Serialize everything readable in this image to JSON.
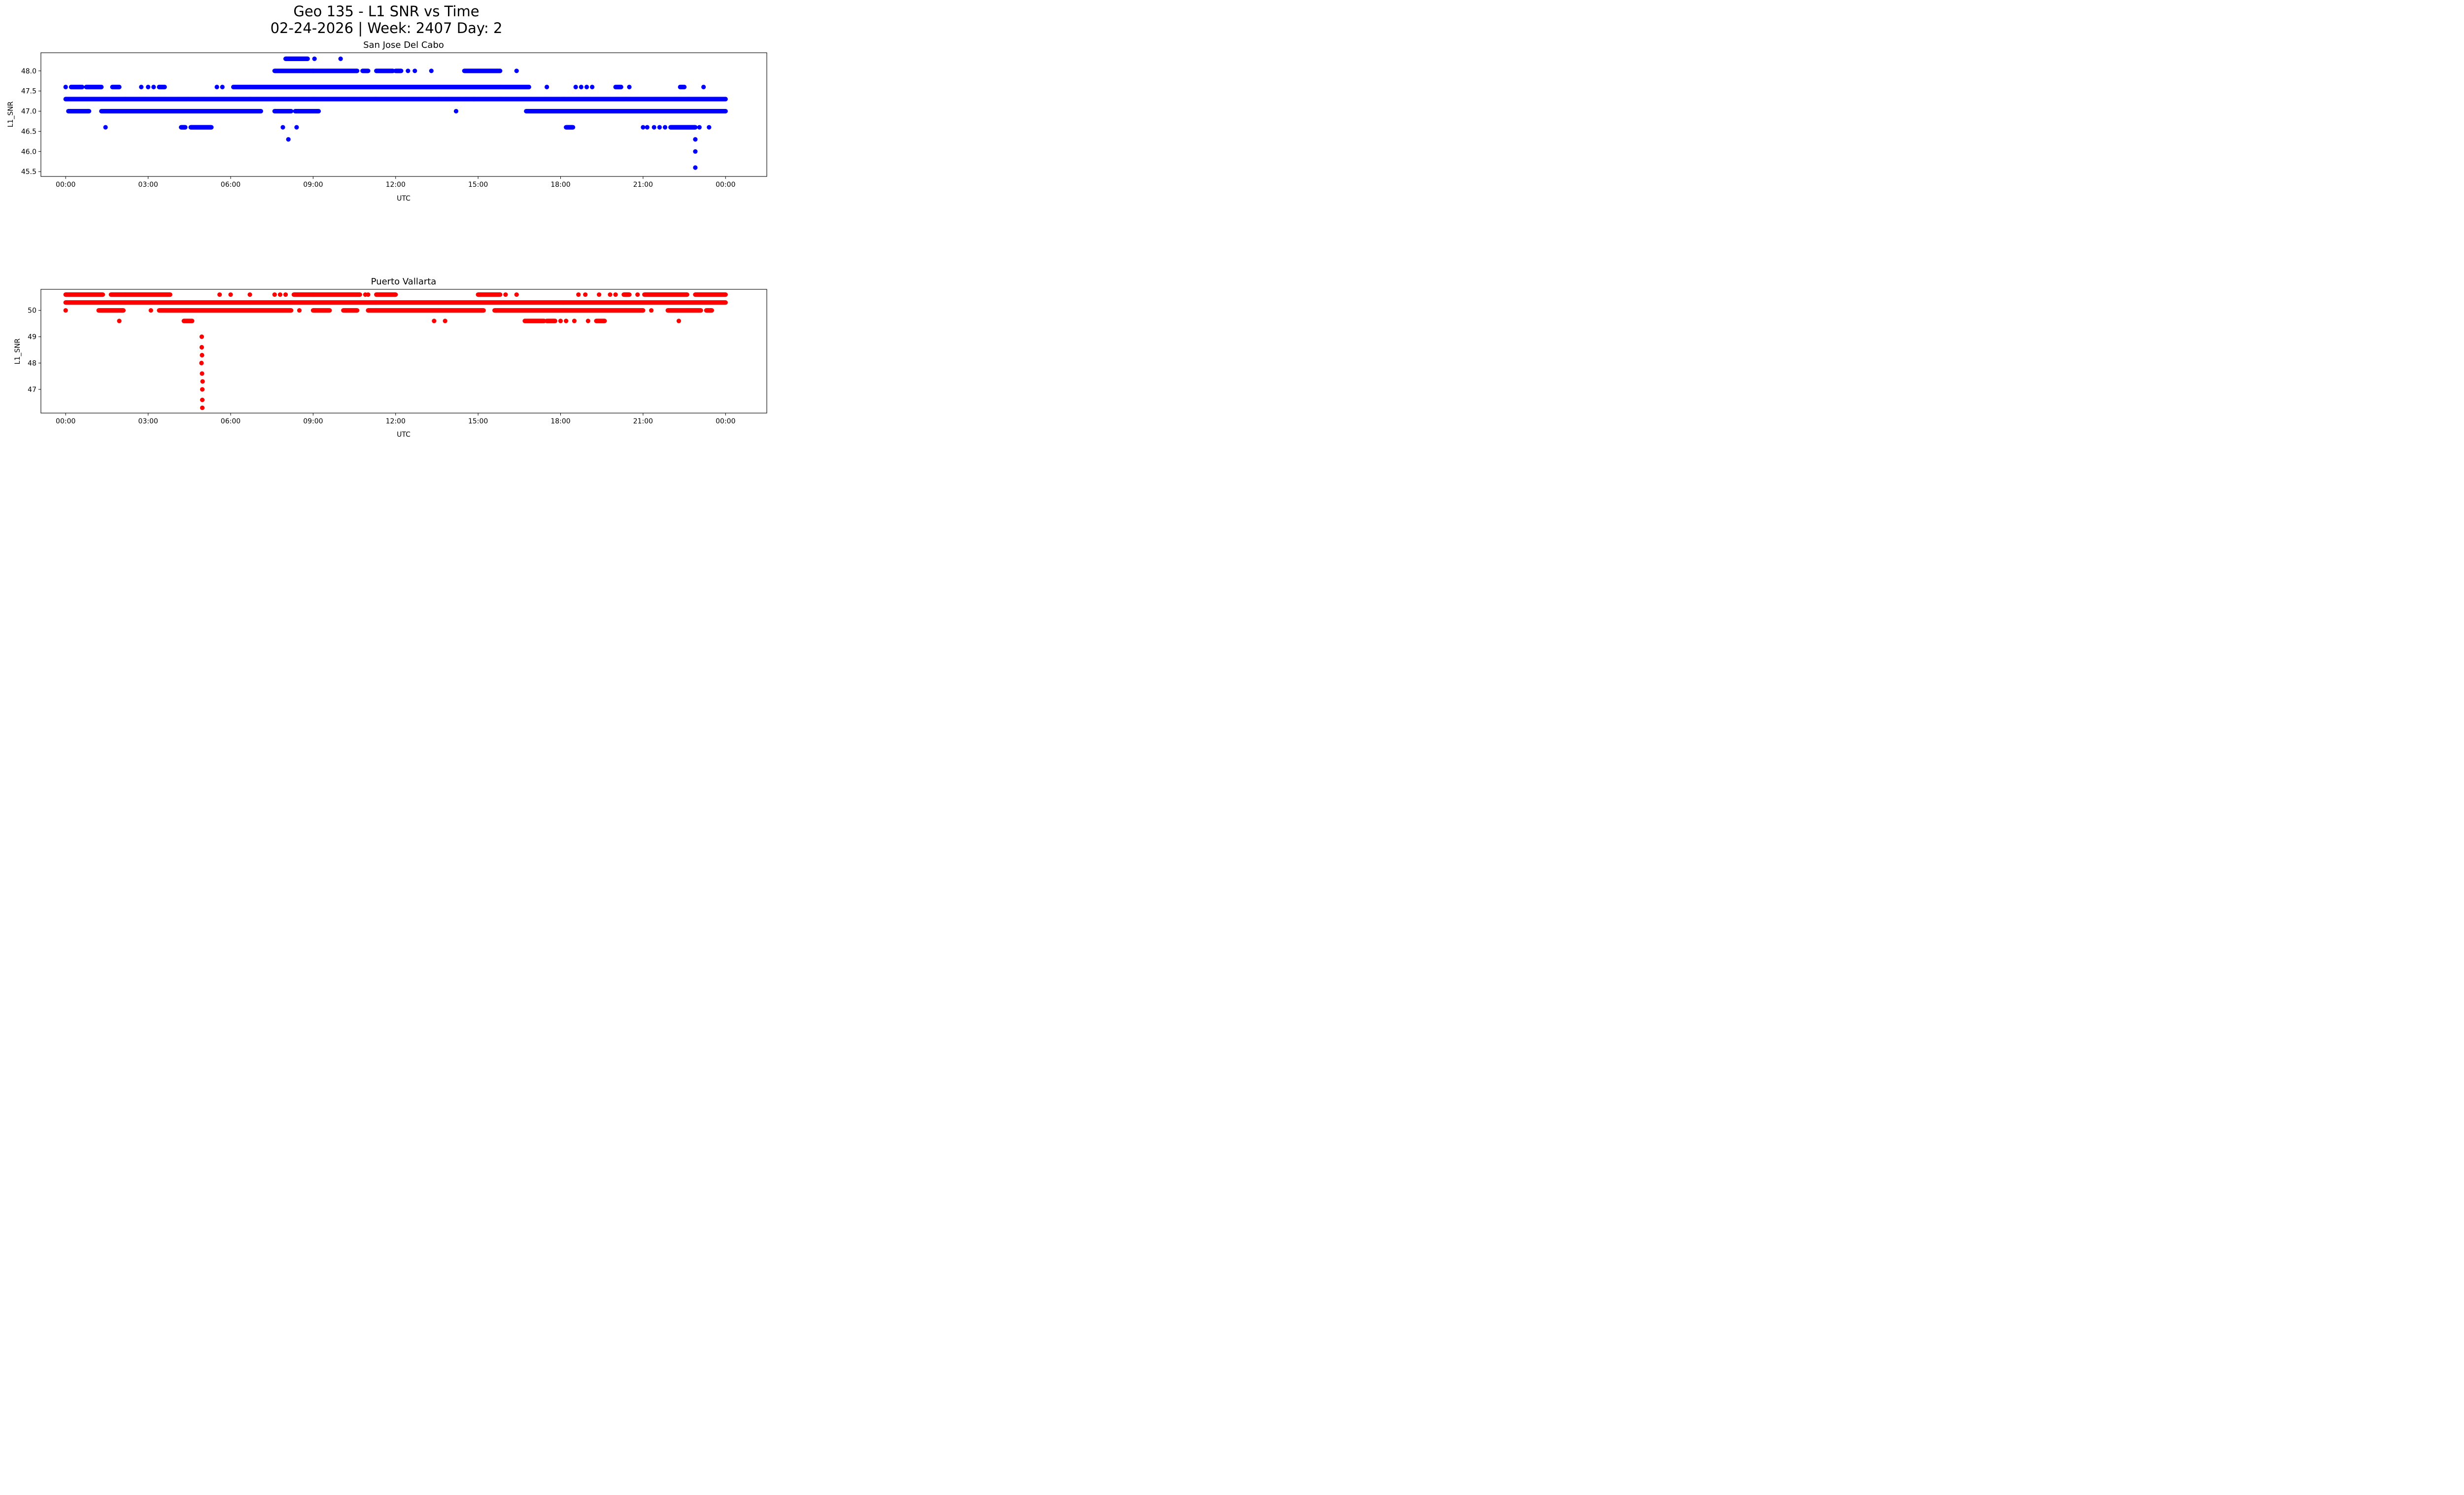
{
  "figure": {
    "suptitle_line1": "Geo 135 - L1 SNR vs Time",
    "suptitle_line2": "02-24-2026 | Week: 2407 Day: 2"
  },
  "chart_data": [
    {
      "type": "scatter",
      "title": "San Jose Del Cabo",
      "xlabel": "UTC",
      "ylabel": "L1_SNR",
      "color": "#0000ff",
      "x_unit": "hours since 00:00 UTC",
      "xlim": [
        -0.9,
        25.5
      ],
      "ylim": [
        45.38,
        48.45
      ],
      "xticks": [
        0,
        3,
        6,
        9,
        12,
        15,
        18,
        21,
        24
      ],
      "xtick_labels": [
        "00:00",
        "03:00",
        "06:00",
        "09:00",
        "12:00",
        "15:00",
        "18:00",
        "21:00",
        "00:00"
      ],
      "yticks": [
        45.5,
        46.0,
        46.5,
        47.0,
        47.5,
        48.0
      ],
      "ytick_labels": [
        "45.5",
        "46.0",
        "46.5",
        "47.0",
        "47.5",
        "48.0"
      ],
      "grid": false,
      "runs": [
        {
          "y": 47.3,
          "x0": 0.0,
          "x1": 24.0
        },
        {
          "y": 47.0,
          "x0": 0.1,
          "x1": 0.85
        },
        {
          "y": 47.0,
          "x0": 1.3,
          "x1": 7.1
        },
        {
          "y": 47.0,
          "x0": 7.6,
          "x1": 8.2
        },
        {
          "y": 47.0,
          "x0": 8.35,
          "x1": 9.2
        },
        {
          "y": 47.0,
          "x0": 16.75,
          "x1": 24.0
        },
        {
          "y": 47.6,
          "x0": 0.2,
          "x1": 0.6
        },
        {
          "y": 47.6,
          "x0": 0.75,
          "x1": 1.3
        },
        {
          "y": 47.6,
          "x0": 1.7,
          "x1": 1.95
        },
        {
          "y": 47.6,
          "x0": 3.4,
          "x1": 3.6
        },
        {
          "y": 47.6,
          "x0": 6.1,
          "x1": 16.85
        },
        {
          "y": 47.6,
          "x0": 20.0,
          "x1": 20.2
        },
        {
          "y": 47.6,
          "x0": 22.35,
          "x1": 22.5
        },
        {
          "y": 48.0,
          "x0": 7.6,
          "x1": 10.6
        },
        {
          "y": 48.0,
          "x0": 10.8,
          "x1": 11.0
        },
        {
          "y": 48.0,
          "x0": 11.3,
          "x1": 11.9
        },
        {
          "y": 48.0,
          "x0": 12.0,
          "x1": 12.2
        },
        {
          "y": 48.0,
          "x0": 14.5,
          "x1": 15.8
        },
        {
          "y": 48.3,
          "x0": 8.0,
          "x1": 8.8
        },
        {
          "y": 46.6,
          "x0": 4.2,
          "x1": 4.35
        },
        {
          "y": 46.6,
          "x0": 4.55,
          "x1": 5.3
        },
        {
          "y": 46.6,
          "x0": 22.0,
          "x1": 22.9
        },
        {
          "y": 46.6,
          "x0": 18.2,
          "x1": 18.45
        }
      ],
      "points": [
        {
          "x": 0.0,
          "y": 47.6
        },
        {
          "x": 1.45,
          "y": 46.6
        },
        {
          "x": 2.75,
          "y": 47.6
        },
        {
          "x": 3.0,
          "y": 47.6
        },
        {
          "x": 3.2,
          "y": 47.6
        },
        {
          "x": 5.5,
          "y": 47.6
        },
        {
          "x": 5.7,
          "y": 47.6
        },
        {
          "x": 7.9,
          "y": 46.6
        },
        {
          "x": 8.4,
          "y": 46.6
        },
        {
          "x": 8.1,
          "y": 46.3
        },
        {
          "x": 9.05,
          "y": 48.3
        },
        {
          "x": 10.0,
          "y": 48.3
        },
        {
          "x": 12.45,
          "y": 48.0
        },
        {
          "x": 12.7,
          "y": 48.0
        },
        {
          "x": 13.3,
          "y": 48.0
        },
        {
          "x": 16.4,
          "y": 48.0
        },
        {
          "x": 14.2,
          "y": 47.0
        },
        {
          "x": 14.85,
          "y": 47.3
        },
        {
          "x": 17.5,
          "y": 47.6
        },
        {
          "x": 18.55,
          "y": 47.6
        },
        {
          "x": 18.75,
          "y": 47.6
        },
        {
          "x": 18.95,
          "y": 47.6
        },
        {
          "x": 19.15,
          "y": 47.6
        },
        {
          "x": 20.5,
          "y": 47.6
        },
        {
          "x": 23.2,
          "y": 47.6
        },
        {
          "x": 21.0,
          "y": 46.6
        },
        {
          "x": 21.15,
          "y": 46.6
        },
        {
          "x": 21.4,
          "y": 46.6
        },
        {
          "x": 21.6,
          "y": 46.6
        },
        {
          "x": 21.8,
          "y": 46.6
        },
        {
          "x": 23.05,
          "y": 46.6
        },
        {
          "x": 23.4,
          "y": 46.6
        },
        {
          "x": 22.9,
          "y": 46.3
        },
        {
          "x": 22.9,
          "y": 46.0
        },
        {
          "x": 22.9,
          "y": 45.6
        }
      ]
    },
    {
      "type": "scatter",
      "title": "Puerto Vallarta",
      "xlabel": "UTC",
      "ylabel": "L1_SNR",
      "color": "#ff0000",
      "x_unit": "hours since 00:00 UTC",
      "xlim": [
        -0.9,
        25.5
      ],
      "ylim": [
        46.1,
        50.8
      ],
      "xticks": [
        0,
        3,
        6,
        9,
        12,
        15,
        18,
        21,
        24
      ],
      "xtick_labels": [
        "00:00",
        "03:00",
        "06:00",
        "09:00",
        "12:00",
        "15:00",
        "18:00",
        "21:00",
        "00:00"
      ],
      "yticks": [
        47,
        48,
        49,
        50
      ],
      "ytick_labels": [
        "47",
        "48",
        "49",
        "50"
      ],
      "grid": false,
      "runs": [
        {
          "y": 50.3,
          "x0": 0.0,
          "x1": 24.0
        },
        {
          "y": 50.6,
          "x0": 0.0,
          "x1": 1.35
        },
        {
          "y": 50.6,
          "x0": 1.65,
          "x1": 3.8
        },
        {
          "y": 50.6,
          "x0": 8.3,
          "x1": 10.7
        },
        {
          "y": 50.6,
          "x0": 11.3,
          "x1": 12.0
        },
        {
          "y": 50.6,
          "x0": 15.0,
          "x1": 15.8
        },
        {
          "y": 50.6,
          "x0": 20.3,
          "x1": 20.5
        },
        {
          "y": 50.6,
          "x0": 21.05,
          "x1": 22.6
        },
        {
          "y": 50.6,
          "x0": 22.9,
          "x1": 24.0
        },
        {
          "y": 50.0,
          "x0": 1.2,
          "x1": 2.1
        },
        {
          "y": 50.0,
          "x0": 3.4,
          "x1": 8.2
        },
        {
          "y": 50.0,
          "x0": 9.0,
          "x1": 9.6
        },
        {
          "y": 50.0,
          "x0": 10.1,
          "x1": 10.6
        },
        {
          "y": 50.0,
          "x0": 11.0,
          "x1": 15.2
        },
        {
          "y": 50.0,
          "x0": 15.6,
          "x1": 21.0
        },
        {
          "y": 50.0,
          "x0": 21.9,
          "x1": 23.1
        },
        {
          "y": 50.0,
          "x0": 23.3,
          "x1": 23.5
        },
        {
          "y": 49.6,
          "x0": 16.7,
          "x1": 17.4
        },
        {
          "y": 49.6,
          "x0": 17.5,
          "x1": 17.8
        },
        {
          "y": 49.6,
          "x0": 19.3,
          "x1": 19.6
        },
        {
          "y": 49.6,
          "x0": 4.3,
          "x1": 4.6
        }
      ],
      "points": [
        {
          "x": 0.0,
          "y": 50.0
        },
        {
          "x": 1.95,
          "y": 49.6
        },
        {
          "x": 3.1,
          "y": 50.0
        },
        {
          "x": 5.6,
          "y": 50.6
        },
        {
          "x": 6.0,
          "y": 50.6
        },
        {
          "x": 6.7,
          "y": 50.6
        },
        {
          "x": 7.6,
          "y": 50.6
        },
        {
          "x": 7.8,
          "y": 50.6
        },
        {
          "x": 8.0,
          "y": 50.6
        },
        {
          "x": 10.9,
          "y": 50.6
        },
        {
          "x": 11.0,
          "y": 50.6
        },
        {
          "x": 8.5,
          "y": 50.0
        },
        {
          "x": 13.4,
          "y": 49.6
        },
        {
          "x": 13.8,
          "y": 49.6
        },
        {
          "x": 16.0,
          "y": 50.6
        },
        {
          "x": 16.4,
          "y": 50.6
        },
        {
          "x": 18.0,
          "y": 49.6
        },
        {
          "x": 18.2,
          "y": 49.6
        },
        {
          "x": 18.5,
          "y": 49.6
        },
        {
          "x": 19.0,
          "y": 49.6
        },
        {
          "x": 18.65,
          "y": 50.6
        },
        {
          "x": 18.9,
          "y": 50.6
        },
        {
          "x": 19.4,
          "y": 50.6
        },
        {
          "x": 19.8,
          "y": 50.6
        },
        {
          "x": 20.0,
          "y": 50.6
        },
        {
          "x": 20.8,
          "y": 50.6
        },
        {
          "x": 22.3,
          "y": 49.6
        },
        {
          "x": 21.3,
          "y": 50.0
        },
        {
          "x": 4.95,
          "y": 49.0
        },
        {
          "x": 4.95,
          "y": 48.6
        },
        {
          "x": 4.96,
          "y": 48.3
        },
        {
          "x": 4.94,
          "y": 48.0
        },
        {
          "x": 4.96,
          "y": 47.6
        },
        {
          "x": 4.98,
          "y": 47.3
        },
        {
          "x": 4.97,
          "y": 47.0
        },
        {
          "x": 4.97,
          "y": 46.6
        },
        {
          "x": 4.97,
          "y": 46.3
        }
      ]
    }
  ]
}
